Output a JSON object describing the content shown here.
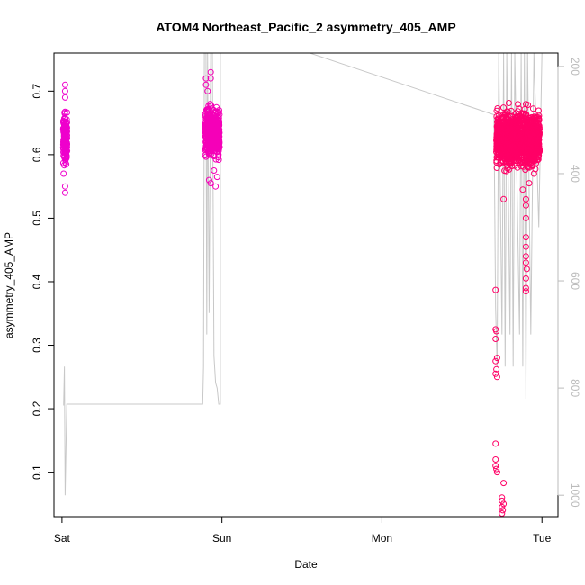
{
  "chart_data": {
    "type": "scatter",
    "title": "ATOM4 Northeast_Pacific_2 asymmetry_405_AMP",
    "xlabel": "Date",
    "ylabel": "asymmetry_405_AMP",
    "x_ticks": [
      "Sat",
      "Sun",
      "Mon",
      "Tue"
    ],
    "x_tick_days": [
      0,
      1,
      2,
      3
    ],
    "xlim": [
      -0.05,
      3.1
    ],
    "ylim": [
      0.03,
      0.76
    ],
    "y_ticks": [
      0.1,
      0.2,
      0.3,
      0.4,
      0.5,
      0.6,
      0.7
    ],
    "y_tick_labels": [
      "0.1",
      "0.2",
      "0.3",
      "0.4",
      "0.5",
      "0.6",
      "0.7"
    ],
    "y2_ticks": [
      200,
      400,
      600,
      800,
      1000
    ],
    "y2_tick_labels": [
      "200",
      "400",
      "600",
      "800",
      "1000"
    ],
    "y2lim": [
      1040,
      175
    ],
    "y2_reversed": true,
    "grid": false,
    "series_colors": {
      "left_cluster": "#ee00cc",
      "right_cluster": "#ff0066",
      "secondary_line": "#c8c8c8"
    },
    "clusters": [
      {
        "x_center": 0.02,
        "x_spread": 0.012,
        "y_center": 0.625,
        "y_spread": 0.03,
        "n": 160,
        "color": "#ee00cc",
        "outliers": [
          [
            0.02,
            0.71
          ],
          [
            0.02,
            0.7
          ],
          [
            0.02,
            0.69
          ],
          [
            0.02,
            0.54
          ],
          [
            0.02,
            0.55
          ],
          [
            0.01,
            0.57
          ]
        ]
      },
      {
        "x_center": 0.94,
        "x_spread": 0.045,
        "y_center": 0.635,
        "y_spread": 0.028,
        "n": 520,
        "color": "#f500b8",
        "outliers": [
          [
            0.9,
            0.72
          ],
          [
            0.9,
            0.71
          ],
          [
            0.93,
            0.73
          ],
          [
            0.93,
            0.72
          ],
          [
            0.91,
            0.7
          ],
          [
            0.92,
            0.56
          ],
          [
            0.93,
            0.555
          ],
          [
            0.96,
            0.55
          ],
          [
            0.97,
            0.565
          ],
          [
            0.95,
            0.575
          ]
        ]
      },
      {
        "x_center": 2.85,
        "x_spread": 0.135,
        "y_center": 0.625,
        "y_spread": 0.032,
        "n": 1300,
        "color": "#ff0066",
        "outliers": [
          [
            2.71,
            0.387
          ],
          [
            2.71,
            0.325
          ],
          [
            2.715,
            0.322
          ],
          [
            2.71,
            0.31
          ],
          [
            2.72,
            0.28
          ],
          [
            2.71,
            0.275
          ],
          [
            2.715,
            0.262
          ],
          [
            2.71,
            0.255
          ],
          [
            2.72,
            0.25
          ],
          [
            2.71,
            0.145
          ],
          [
            2.71,
            0.12
          ],
          [
            2.71,
            0.11
          ],
          [
            2.715,
            0.105
          ],
          [
            2.72,
            0.1
          ],
          [
            2.76,
            0.083
          ],
          [
            2.75,
            0.06
          ],
          [
            2.75,
            0.055
          ],
          [
            2.76,
            0.05
          ],
          [
            2.75,
            0.045
          ],
          [
            2.755,
            0.04
          ],
          [
            2.75,
            0.035
          ],
          [
            2.76,
            0.53
          ],
          [
            2.9,
            0.53
          ],
          [
            2.9,
            0.5
          ],
          [
            2.9,
            0.47
          ],
          [
            2.9,
            0.455
          ],
          [
            2.9,
            0.44
          ],
          [
            2.9,
            0.43
          ],
          [
            2.905,
            0.42
          ],
          [
            2.9,
            0.405
          ],
          [
            2.9,
            0.385
          ],
          [
            2.9,
            0.39
          ],
          [
            2.9,
            0.52
          ],
          [
            2.88,
            0.545
          ],
          [
            2.92,
            0.555
          ],
          [
            2.95,
            0.57
          ]
        ]
      }
    ],
    "secondary_line": [
      [
        0.01,
        0.205
      ],
      [
        0.015,
        760
      ],
      [
        0.02,
        1000
      ],
      [
        0.03,
        830
      ],
      [
        0.05,
        830
      ],
      [
        0.88,
        830
      ],
      [
        0.885,
        760
      ],
      [
        0.89,
        175
      ],
      [
        0.9,
        175
      ],
      [
        0.905,
        700
      ],
      [
        0.91,
        175
      ],
      [
        0.92,
        660
      ],
      [
        0.93,
        175
      ],
      [
        0.94,
        175
      ],
      [
        0.95,
        740
      ],
      [
        0.96,
        790
      ],
      [
        0.97,
        800
      ],
      [
        0.98,
        830
      ],
      [
        0.99,
        830
      ],
      [
        0.99,
        175
      ],
      [
        1.55,
        175
      ],
      [
        2.7,
        290
      ],
      [
        2.71,
        650
      ],
      [
        2.72,
        760
      ],
      [
        2.73,
        175
      ],
      [
        2.75,
        700
      ],
      [
        2.76,
        175
      ],
      [
        2.77,
        760
      ],
      [
        2.78,
        175
      ],
      [
        2.8,
        700
      ],
      [
        2.81,
        175
      ],
      [
        2.82,
        760
      ],
      [
        2.83,
        175
      ],
      [
        2.86,
        700
      ],
      [
        2.87,
        175
      ],
      [
        2.88,
        760
      ],
      [
        2.89,
        175
      ],
      [
        2.9,
        820
      ],
      [
        2.91,
        175
      ],
      [
        2.93,
        700
      ],
      [
        2.95,
        175
      ],
      [
        2.98,
        500
      ],
      [
        3.0,
        175
      ]
    ]
  }
}
